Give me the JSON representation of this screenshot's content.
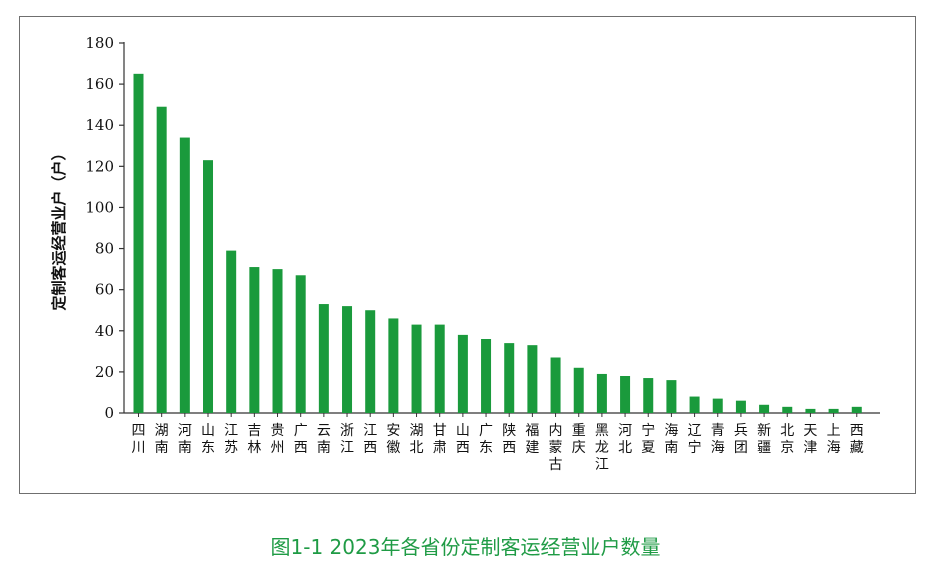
{
  "caption": "图1-1  2023年各省份定制客运经营业户数量",
  "chart_data": {
    "type": "bar",
    "ylabel": "定制客运经营业户（户）",
    "ylim": [
      0,
      180
    ],
    "yticks": [
      0,
      20,
      40,
      60,
      80,
      100,
      120,
      140,
      160,
      180
    ],
    "bar_color": "#1a9a3c",
    "categories": [
      "四川",
      "湖南",
      "河南",
      "山东",
      "江苏",
      "吉林",
      "贵州",
      "广西",
      "云南",
      "浙江",
      "江西",
      "安徽",
      "湖北",
      "甘肃",
      "山西",
      "广东",
      "陕西",
      "福建",
      "内蒙古",
      "重庆",
      "黑龙江",
      "河北",
      "宁夏",
      "海南",
      "辽宁",
      "青海",
      "兵团",
      "新疆",
      "北京",
      "天津",
      "上海",
      "西藏"
    ],
    "values": [
      165,
      149,
      134,
      123,
      79,
      71,
      70,
      67,
      53,
      52,
      50,
      46,
      43,
      43,
      38,
      36,
      34,
      33,
      27,
      22,
      19,
      18,
      17,
      16,
      8,
      7,
      6,
      4,
      3,
      2,
      2,
      3
    ]
  }
}
